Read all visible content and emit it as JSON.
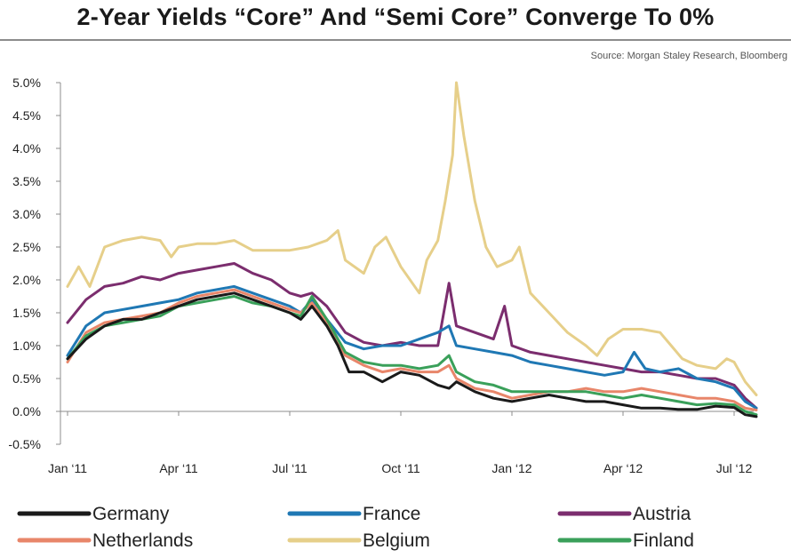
{
  "header": {
    "title": "2-Year Yields “Core” And “Semi Core” Converge To 0%",
    "source": "Source: Morgan Staley Research, Bloomberg"
  },
  "chart_data": {
    "type": "line",
    "title": "2-Year Yields “Core” And “Semi Core” Converge To 0%",
    "xlabel": "",
    "ylabel": "",
    "x_tick_labels": [
      "Jan ‘11",
      "Apr ‘11",
      "Jul ‘11",
      "Oct ‘11",
      "Jan ‘12",
      "Apr ‘12",
      "Jul ‘12"
    ],
    "x_tick_positions_months": [
      0,
      3,
      6,
      9,
      12,
      15,
      18
    ],
    "x_range_months": [
      0,
      18.6
    ],
    "y_tick_labels": [
      "5.0%",
      "4.5%",
      "4.0%",
      "3.5%",
      "3.0%",
      "2.5%",
      "2.0%",
      "1.5%",
      "1.0%",
      "0.5%",
      "0.0%",
      "-0.5%"
    ],
    "y_ticks": [
      5.0,
      4.5,
      4.0,
      3.5,
      3.0,
      2.5,
      2.0,
      1.5,
      1.0,
      0.5,
      0.0,
      -0.5
    ],
    "ylim": [
      -0.5,
      5.0
    ],
    "grid": false,
    "legend_position": "bottom",
    "series": [
      {
        "name": "Germany",
        "color": "#1a1a1a",
        "points": [
          [
            0,
            0.8
          ],
          [
            0.5,
            1.1
          ],
          [
            1,
            1.3
          ],
          [
            1.5,
            1.4
          ],
          [
            2,
            1.4
          ],
          [
            2.5,
            1.5
          ],
          [
            3,
            1.6
          ],
          [
            3.5,
            1.7
          ],
          [
            4,
            1.75
          ],
          [
            4.5,
            1.8
          ],
          [
            5,
            1.7
          ],
          [
            5.5,
            1.6
          ],
          [
            6,
            1.5
          ],
          [
            6.3,
            1.4
          ],
          [
            6.6,
            1.6
          ],
          [
            7,
            1.3
          ],
          [
            7.3,
            1.0
          ],
          [
            7.6,
            0.6
          ],
          [
            8,
            0.6
          ],
          [
            8.5,
            0.45
          ],
          [
            9,
            0.6
          ],
          [
            9.5,
            0.55
          ],
          [
            10,
            0.4
          ],
          [
            10.3,
            0.35
          ],
          [
            10.5,
            0.45
          ],
          [
            11,
            0.3
          ],
          [
            11.5,
            0.2
          ],
          [
            12,
            0.15
          ],
          [
            12.5,
            0.2
          ],
          [
            13,
            0.25
          ],
          [
            13.5,
            0.2
          ],
          [
            14,
            0.15
          ],
          [
            14.5,
            0.15
          ],
          [
            15,
            0.1
          ],
          [
            15.5,
            0.05
          ],
          [
            16,
            0.05
          ],
          [
            16.5,
            0.03
          ],
          [
            17,
            0.03
          ],
          [
            17.5,
            0.08
          ],
          [
            18,
            0.06
          ],
          [
            18.3,
            -0.05
          ],
          [
            18.6,
            -0.08
          ]
        ]
      },
      {
        "name": "France",
        "color": "#1f78b4",
        "points": [
          [
            0,
            0.85
          ],
          [
            0.5,
            1.3
          ],
          [
            1,
            1.5
          ],
          [
            1.5,
            1.55
          ],
          [
            2,
            1.6
          ],
          [
            2.5,
            1.65
          ],
          [
            3,
            1.7
          ],
          [
            3.5,
            1.8
          ],
          [
            4,
            1.85
          ],
          [
            4.5,
            1.9
          ],
          [
            5,
            1.8
          ],
          [
            5.5,
            1.7
          ],
          [
            6,
            1.6
          ],
          [
            6.3,
            1.5
          ],
          [
            6.6,
            1.7
          ],
          [
            7,
            1.4
          ],
          [
            7.5,
            1.05
          ],
          [
            8,
            0.95
          ],
          [
            8.5,
            1.0
          ],
          [
            9,
            1.0
          ],
          [
            9.5,
            1.1
          ],
          [
            10,
            1.2
          ],
          [
            10.3,
            1.3
          ],
          [
            10.5,
            1.0
          ],
          [
            11,
            0.95
          ],
          [
            11.5,
            0.9
          ],
          [
            12,
            0.85
          ],
          [
            12.5,
            0.75
          ],
          [
            13,
            0.7
          ],
          [
            13.5,
            0.65
          ],
          [
            14,
            0.6
          ],
          [
            14.5,
            0.55
          ],
          [
            15,
            0.6
          ],
          [
            15.3,
            0.9
          ],
          [
            15.6,
            0.65
          ],
          [
            16,
            0.6
          ],
          [
            16.5,
            0.65
          ],
          [
            17,
            0.5
          ],
          [
            17.5,
            0.45
          ],
          [
            18,
            0.35
          ],
          [
            18.3,
            0.15
          ],
          [
            18.6,
            0.05
          ]
        ]
      },
      {
        "name": "Austria",
        "color": "#7b2d6e",
        "points": [
          [
            0,
            1.35
          ],
          [
            0.5,
            1.7
          ],
          [
            1,
            1.9
          ],
          [
            1.5,
            1.95
          ],
          [
            2,
            2.05
          ],
          [
            2.5,
            2.0
          ],
          [
            3,
            2.1
          ],
          [
            3.5,
            2.15
          ],
          [
            4,
            2.2
          ],
          [
            4.5,
            2.25
          ],
          [
            5,
            2.1
          ],
          [
            5.5,
            2.0
          ],
          [
            6,
            1.8
          ],
          [
            6.3,
            1.75
          ],
          [
            6.6,
            1.8
          ],
          [
            7,
            1.6
          ],
          [
            7.5,
            1.2
          ],
          [
            8,
            1.05
          ],
          [
            8.5,
            1.0
          ],
          [
            9,
            1.05
          ],
          [
            9.5,
            1.0
          ],
          [
            10,
            1.0
          ],
          [
            10.3,
            1.95
          ],
          [
            10.5,
            1.3
          ],
          [
            11,
            1.2
          ],
          [
            11.5,
            1.1
          ],
          [
            11.8,
            1.6
          ],
          [
            12,
            1.0
          ],
          [
            12.5,
            0.9
          ],
          [
            13,
            0.85
          ],
          [
            13.5,
            0.8
          ],
          [
            14,
            0.75
          ],
          [
            14.5,
            0.7
          ],
          [
            15,
            0.65
          ],
          [
            15.5,
            0.6
          ],
          [
            16,
            0.6
          ],
          [
            16.5,
            0.55
          ],
          [
            17,
            0.5
          ],
          [
            17.5,
            0.5
          ],
          [
            18,
            0.4
          ],
          [
            18.3,
            0.2
          ],
          [
            18.6,
            0.05
          ]
        ]
      },
      {
        "name": "Netherlands",
        "color": "#e8866a",
        "points": [
          [
            0,
            0.75
          ],
          [
            0.5,
            1.2
          ],
          [
            1,
            1.35
          ],
          [
            1.5,
            1.4
          ],
          [
            2,
            1.45
          ],
          [
            2.5,
            1.5
          ],
          [
            3,
            1.65
          ],
          [
            3.5,
            1.75
          ],
          [
            4,
            1.8
          ],
          [
            4.5,
            1.85
          ],
          [
            5,
            1.75
          ],
          [
            5.5,
            1.65
          ],
          [
            6,
            1.55
          ],
          [
            6.3,
            1.5
          ],
          [
            6.6,
            1.65
          ],
          [
            7,
            1.35
          ],
          [
            7.5,
            0.85
          ],
          [
            8,
            0.7
          ],
          [
            8.5,
            0.6
          ],
          [
            9,
            0.65
          ],
          [
            9.5,
            0.6
          ],
          [
            10,
            0.6
          ],
          [
            10.3,
            0.7
          ],
          [
            10.5,
            0.5
          ],
          [
            11,
            0.35
          ],
          [
            11.5,
            0.3
          ],
          [
            12,
            0.2
          ],
          [
            12.5,
            0.25
          ],
          [
            13,
            0.3
          ],
          [
            13.5,
            0.3
          ],
          [
            14,
            0.35
          ],
          [
            14.5,
            0.3
          ],
          [
            15,
            0.3
          ],
          [
            15.5,
            0.35
          ],
          [
            16,
            0.3
          ],
          [
            16.5,
            0.25
          ],
          [
            17,
            0.2
          ],
          [
            17.5,
            0.2
          ],
          [
            18,
            0.15
          ],
          [
            18.3,
            0.05
          ],
          [
            18.6,
            0.02
          ]
        ]
      },
      {
        "name": "Belgium",
        "color": "#e6cf8a",
        "points": [
          [
            0,
            1.9
          ],
          [
            0.3,
            2.2
          ],
          [
            0.6,
            1.9
          ],
          [
            1,
            2.5
          ],
          [
            1.5,
            2.6
          ],
          [
            2,
            2.65
          ],
          [
            2.5,
            2.6
          ],
          [
            2.8,
            2.35
          ],
          [
            3,
            2.5
          ],
          [
            3.5,
            2.55
          ],
          [
            4,
            2.55
          ],
          [
            4.5,
            2.6
          ],
          [
            5,
            2.45
          ],
          [
            5.5,
            2.45
          ],
          [
            6,
            2.45
          ],
          [
            6.5,
            2.5
          ],
          [
            7,
            2.6
          ],
          [
            7.3,
            2.75
          ],
          [
            7.5,
            2.3
          ],
          [
            8,
            2.1
          ],
          [
            8.3,
            2.5
          ],
          [
            8.6,
            2.65
          ],
          [
            9,
            2.2
          ],
          [
            9.5,
            1.8
          ],
          [
            9.7,
            2.3
          ],
          [
            10,
            2.6
          ],
          [
            10.2,
            3.2
          ],
          [
            10.4,
            3.9
          ],
          [
            10.5,
            5.0
          ],
          [
            10.7,
            4.2
          ],
          [
            11,
            3.2
          ],
          [
            11.3,
            2.5
          ],
          [
            11.6,
            2.2
          ],
          [
            12,
            2.3
          ],
          [
            12.2,
            2.5
          ],
          [
            12.5,
            1.8
          ],
          [
            13,
            1.5
          ],
          [
            13.5,
            1.2
          ],
          [
            14,
            1.0
          ],
          [
            14.3,
            0.85
          ],
          [
            14.6,
            1.1
          ],
          [
            15,
            1.25
          ],
          [
            15.5,
            1.25
          ],
          [
            16,
            1.2
          ],
          [
            16.3,
            1.0
          ],
          [
            16.6,
            0.8
          ],
          [
            17,
            0.7
          ],
          [
            17.5,
            0.65
          ],
          [
            17.8,
            0.8
          ],
          [
            18,
            0.75
          ],
          [
            18.3,
            0.45
          ],
          [
            18.6,
            0.25
          ]
        ]
      },
      {
        "name": "Finland",
        "color": "#3aa05a",
        "points": [
          [
            0,
            0.8
          ],
          [
            0.5,
            1.15
          ],
          [
            1,
            1.3
          ],
          [
            1.5,
            1.35
          ],
          [
            2,
            1.4
          ],
          [
            2.5,
            1.45
          ],
          [
            3,
            1.6
          ],
          [
            3.5,
            1.65
          ],
          [
            4,
            1.7
          ],
          [
            4.5,
            1.75
          ],
          [
            5,
            1.65
          ],
          [
            5.5,
            1.6
          ],
          [
            6,
            1.5
          ],
          [
            6.3,
            1.45
          ],
          [
            6.6,
            1.75
          ],
          [
            7,
            1.4
          ],
          [
            7.5,
            0.9
          ],
          [
            8,
            0.75
          ],
          [
            8.5,
            0.7
          ],
          [
            9,
            0.7
          ],
          [
            9.5,
            0.65
          ],
          [
            10,
            0.7
          ],
          [
            10.3,
            0.85
          ],
          [
            10.5,
            0.6
          ],
          [
            11,
            0.45
          ],
          [
            11.5,
            0.4
          ],
          [
            12,
            0.3
          ],
          [
            12.5,
            0.3
          ],
          [
            13,
            0.3
          ],
          [
            13.5,
            0.3
          ],
          [
            14,
            0.3
          ],
          [
            14.5,
            0.25
          ],
          [
            15,
            0.2
          ],
          [
            15.5,
            0.25
          ],
          [
            16,
            0.2
          ],
          [
            16.5,
            0.15
          ],
          [
            17,
            0.1
          ],
          [
            17.5,
            0.12
          ],
          [
            18,
            0.1
          ],
          [
            18.3,
            0.0
          ],
          [
            18.6,
            -0.05
          ]
        ]
      }
    ],
    "legend": [
      {
        "name": "Germany",
        "color": "#1a1a1a"
      },
      {
        "name": "France",
        "color": "#1f78b4"
      },
      {
        "name": "Austria",
        "color": "#7b2d6e"
      },
      {
        "name": "Netherlands",
        "color": "#e8866a"
      },
      {
        "name": "Belgium",
        "color": "#e6cf8a"
      },
      {
        "name": "Finland",
        "color": "#3aa05a"
      }
    ]
  }
}
